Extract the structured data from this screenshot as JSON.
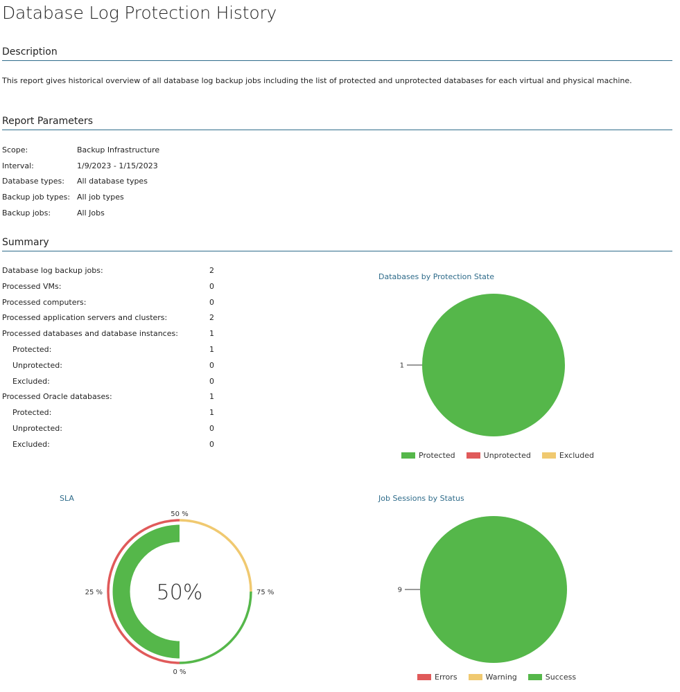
{
  "title": "Database Log Protection History",
  "description": {
    "heading": "Description",
    "text": "This report gives historical overview of all database log backup jobs including the list of protected and unprotected databases for each virtual and physical machine."
  },
  "parameters": {
    "heading": "Report Parameters",
    "items": [
      {
        "label": "Scope:",
        "value": "Backup Infrastructure"
      },
      {
        "label": "Interval:",
        "value": "1/9/2023 - 1/15/2023"
      },
      {
        "label": "Database types:",
        "value": "All database types"
      },
      {
        "label": "Backup job types:",
        "value": "All job types"
      },
      {
        "label": "Backup jobs:",
        "value": "All Jobs"
      }
    ]
  },
  "summary": {
    "heading": "Summary",
    "rows": [
      {
        "label": "Database log backup jobs:",
        "value": "2"
      },
      {
        "label": "Processed VMs:",
        "value": "0"
      },
      {
        "label": "Processed computers:",
        "value": "0"
      },
      {
        "label": "Processed application servers and clusters:",
        "value": "2"
      },
      {
        "label": "Processed databases and database instances:",
        "value": "1"
      },
      {
        "label": "Protected:",
        "value": "1"
      },
      {
        "label": "Unprotected:",
        "value": "0"
      },
      {
        "label": "Excluded:",
        "value": "0"
      },
      {
        "label": "Processed Oracle databases:",
        "value": "1"
      },
      {
        "label": "Protected:",
        "value": "1"
      },
      {
        "label": "Unprotected:",
        "value": "0"
      },
      {
        "label": "Excluded:",
        "value": "0"
      }
    ]
  },
  "colors": {
    "green": "#55b74a",
    "red": "#e05a5a",
    "yellow": "#f0c970",
    "accent": "#2e6b8a"
  },
  "chart_data": [
    {
      "type": "pie",
      "title": "Databases by Protection State",
      "categories": [
        "Protected",
        "Unprotected",
        "Excluded"
      ],
      "values": [
        1,
        0,
        0
      ],
      "slice_label": "1",
      "legend": "bottom"
    },
    {
      "type": "gauge",
      "title": "SLA",
      "value": 50,
      "center_label": "50%",
      "tick_labels": [
        "0 %",
        "25 %",
        "50 %",
        "75 %"
      ],
      "bands": [
        {
          "from": 0,
          "to": 50,
          "color": "red"
        },
        {
          "from": 50,
          "to": 75,
          "color": "yellow"
        },
        {
          "from": 75,
          "to": 100,
          "color": "green"
        }
      ]
    },
    {
      "type": "pie",
      "title": "Job Sessions by Status",
      "categories": [
        "Errors",
        "Warning",
        "Success"
      ],
      "values": [
        0,
        0,
        9
      ],
      "slice_label": "9",
      "legend": "bottom"
    }
  ]
}
